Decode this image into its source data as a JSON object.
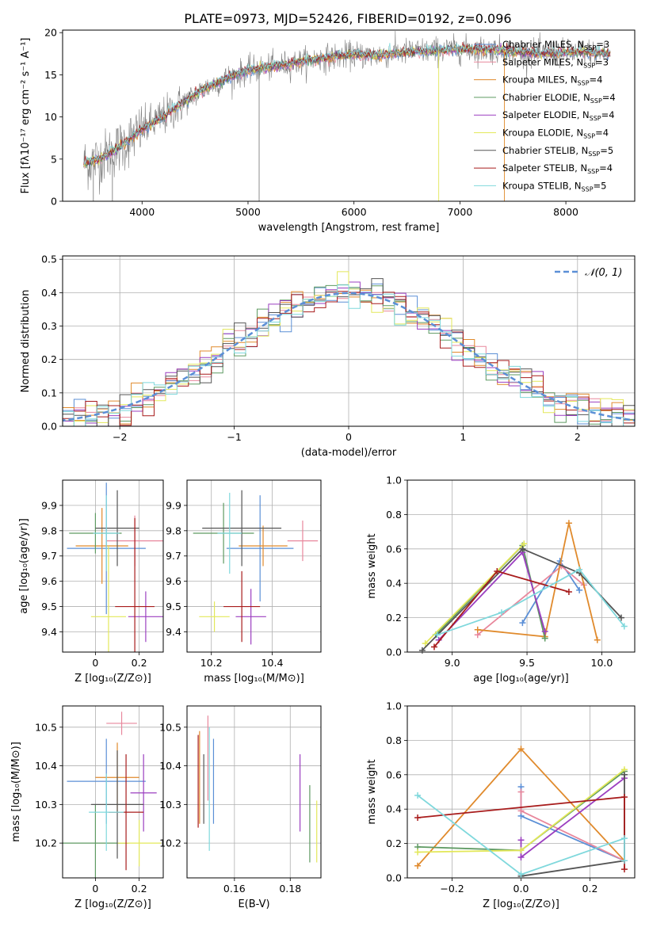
{
  "figure": {
    "title": "PLATE=0973, MJD=52426, FIBERID=0192, z=0.096"
  },
  "series_styles": [
    {
      "name": "Chabrier MILES, N",
      "sub": "SSP",
      "tail": "=3",
      "color": "#5b8fd6"
    },
    {
      "name": "Salpeter MILES, N",
      "sub": "SSP",
      "tail": "=3",
      "color": "#e8879c"
    },
    {
      "name": "Kroupa MILES, N",
      "sub": "SSP",
      "tail": "=4",
      "color": "#e08a2c"
    },
    {
      "name": "Chabrier ELODIE, N",
      "sub": "SSP",
      "tail": "=4",
      "color": "#5e9a62"
    },
    {
      "name": "Salpeter ELODIE, N",
      "sub": "SSP",
      "tail": "=4",
      "color": "#9b3fc0"
    },
    {
      "name": "Kroupa ELODIE, N",
      "sub": "SSP",
      "tail": "=4",
      "color": "#e3e85a"
    },
    {
      "name": "Chabrier STELIB, N",
      "sub": "SSP",
      "tail": "=5",
      "color": "#555555"
    },
    {
      "name": "Salpeter STELIB, N",
      "sub": "SSP",
      "tail": "=4",
      "color": "#a81c1c"
    },
    {
      "name": "Kroupa STELIB, N",
      "sub": "SSP",
      "tail": "=5",
      "color": "#7fd8dc"
    }
  ],
  "chart_data": [
    {
      "type": "line",
      "id": "spectrum",
      "title": "PLATE=0973, MJD=52426, FIBERID=0192, z=0.096",
      "xlabel": "wavelength [Angstrom, rest frame]",
      "ylabel": "Flux [fλ10⁻¹⁷ erg cm⁻² s⁻¹ A⁻¹]",
      "xlim": [
        3250,
        8650
      ],
      "ylim": [
        0,
        20.3
      ],
      "xticks": [
        4000,
        5000,
        6000,
        7000,
        8000
      ],
      "yticks": [
        0,
        5,
        10,
        15,
        20
      ],
      "continuum": {
        "x": [
          3450,
          3600,
          3800,
          4000,
          4200,
          4400,
          4600,
          4800,
          5000,
          5200,
          5400,
          5600,
          5800,
          6000,
          6200,
          6400,
          6600,
          6800,
          7000,
          7200,
          7400,
          7600,
          7800,
          8000,
          8200,
          8400
        ],
        "y": [
          4.5,
          5.0,
          6.5,
          8.5,
          10.0,
          11.8,
          13.4,
          14.6,
          15.5,
          15.9,
          16.3,
          16.8,
          17.1,
          17.4,
          17.3,
          17.6,
          17.8,
          17.9,
          18.0,
          18.0,
          17.9,
          17.6,
          17.5,
          17.6,
          17.7,
          17.5
        ]
      },
      "legend": "upper right"
    },
    {
      "type": "line",
      "id": "residuals",
      "xlabel": "(data-model)/error",
      "ylabel": "Normed distribution",
      "xlim": [
        -2.5,
        2.5
      ],
      "ylim": [
        0,
        0.51
      ],
      "xticks": [
        -2,
        -1,
        0,
        1,
        2
      ],
      "yticks": [
        0,
        0.1,
        0.2,
        0.3,
        0.4,
        0.5
      ],
      "xtick_labels": [
        "−2",
        "−1",
        "0",
        "1",
        "2"
      ],
      "yticklabels": [
        "0.0",
        "0.1",
        "0.2",
        "0.3",
        "0.4",
        "0.5"
      ],
      "gaussian_label": "𝒩(0, 1)",
      "grid": true,
      "legend": "upper right"
    },
    {
      "type": "scatter",
      "id": "age_vs_Z",
      "xlabel": "Z [log₁₀(Z/Z⊙)]",
      "ylabel": "age  [log₁₀(age/yr)]",
      "xlim": [
        -0.15,
        0.31
      ],
      "ylim": [
        9.32,
        10.0
      ],
      "xticks": [
        0.0,
        0.2
      ],
      "yticks": [
        9.4,
        9.5,
        9.6,
        9.7,
        9.8,
        9.9
      ],
      "points": [
        {
          "x": 0.05,
          "y": 9.73,
          "xerr": 0.18,
          "yerr": 0.26
        },
        {
          "x": 0.18,
          "y": 9.76,
          "xerr": 0.13,
          "yerr": 0.1
        },
        {
          "x": 0.03,
          "y": 9.74,
          "xerr": 0.12,
          "yerr": 0.15
        },
        {
          "x": 0.0,
          "y": 9.79,
          "xerr": 0.12,
          "yerr": 0.08
        },
        {
          "x": 0.23,
          "y": 9.46,
          "xerr": 0.08,
          "yerr": 0.1
        },
        {
          "x": 0.06,
          "y": 9.46,
          "xerr": 0.08,
          "yerr": 0.28
        },
        {
          "x": 0.1,
          "y": 9.81,
          "xerr": 0.1,
          "yerr": 0.15
        },
        {
          "x": 0.18,
          "y": 9.5,
          "xerr": 0.09,
          "yerr": 0.35
        },
        {
          "x": 0.05,
          "y": 9.79,
          "xerr": 0.06,
          "yerr": 0.15
        }
      ]
    },
    {
      "type": "scatter",
      "id": "age_vs_mass",
      "xlabel": "mass [log₁₀(M/M⊙)]",
      "xlim": [
        10.12,
        10.56
      ],
      "ylim": [
        9.32,
        10.0
      ],
      "xticks": [
        10.2,
        10.4
      ],
      "yticks": [
        9.4,
        9.5,
        9.6,
        9.7,
        9.8,
        9.9
      ],
      "points": [
        {
          "x": 10.36,
          "y": 9.73,
          "xerr": 0.11,
          "yerr": 0.21
        },
        {
          "x": 10.5,
          "y": 9.76,
          "xerr": 0.05,
          "yerr": 0.08
        },
        {
          "x": 10.37,
          "y": 9.74,
          "xerr": 0.08,
          "yerr": 0.08
        },
        {
          "x": 10.24,
          "y": 9.79,
          "xerr": 0.1,
          "yerr": 0.12
        },
        {
          "x": 10.33,
          "y": 9.46,
          "xerr": 0.05,
          "yerr": 0.11
        },
        {
          "x": 10.21,
          "y": 9.46,
          "xerr": 0.05,
          "yerr": 0.06
        },
        {
          "x": 10.3,
          "y": 9.81,
          "xerr": 0.13,
          "yerr": 0.15
        },
        {
          "x": 10.3,
          "y": 9.5,
          "xerr": 0.06,
          "yerr": 0.14
        },
        {
          "x": 10.26,
          "y": 9.79,
          "xerr": 0.04,
          "yerr": 0.16
        }
      ]
    },
    {
      "type": "line",
      "id": "weight_vs_age",
      "xlabel": "age  [log₁₀(age/yr)]",
      "ylabel": "mass weight",
      "xlim": [
        8.7,
        10.22
      ],
      "ylim": [
        0,
        1.0
      ],
      "xticks": [
        9.0,
        9.5,
        10.0
      ],
      "yticks": [
        0,
        0.2,
        0.4,
        0.6,
        0.8,
        1.0
      ],
      "xticklabels": [
        "9.0",
        "9.5",
        "10.0"
      ],
      "yticklabels": [
        "0.0",
        "0.2",
        "0.4",
        "0.6",
        "0.8",
        "1.0"
      ],
      "series": [
        {
          "x": [
            9.47,
            9.72,
            9.85
          ],
          "y": [
            0.17,
            0.53,
            0.36
          ]
        },
        {
          "x": [
            9.17,
            9.73,
            9.88
          ],
          "y": [
            0.1,
            0.5,
            0.39
          ]
        },
        {
          "x": [
            9.17,
            9.62,
            9.78,
            9.97
          ],
          "y": [
            0.13,
            0.09,
            0.75,
            0.07
          ]
        },
        {
          "x": [
            8.89,
            9.47,
            9.62
          ],
          "y": [
            0.1,
            0.62,
            0.08
          ]
        },
        {
          "x": [
            8.91,
            9.47,
            9.62
          ],
          "y": [
            0.07,
            0.58,
            0.12
          ]
        },
        {
          "x": [
            8.82,
            9.48
          ],
          "y": [
            0.05,
            0.63
          ]
        },
        {
          "x": [
            8.8,
            9.47,
            9.85,
            10.13
          ],
          "y": [
            0.01,
            0.6,
            0.46,
            0.2
          ]
        },
        {
          "x": [
            8.88,
            9.3,
            9.78
          ],
          "y": [
            0.03,
            0.47,
            0.35
          ]
        },
        {
          "x": [
            8.9,
            9.33,
            9.85,
            10.15
          ],
          "y": [
            0.1,
            0.23,
            0.48,
            0.15
          ]
        }
      ]
    },
    {
      "type": "scatter",
      "id": "mass_vs_Z",
      "xlabel": "Z [log₁₀(Z/Z⊙)]",
      "ylabel": "mass [log₁₀(M/M⊙)]",
      "xlim": [
        -0.15,
        0.31
      ],
      "ylim": [
        10.11,
        10.555
      ],
      "xticks": [
        0.0,
        0.2
      ],
      "yticks": [
        10.2,
        10.3,
        10.4,
        10.5
      ],
      "points": [
        {
          "x": 0.05,
          "y": 10.36,
          "xerr": 0.18,
          "yerr": 0.11
        },
        {
          "x": 0.12,
          "y": 10.51,
          "xerr": 0.07,
          "yerr": 0.03
        },
        {
          "x": 0.1,
          "y": 10.37,
          "xerr": 0.1,
          "yerr": 0.09
        },
        {
          "x": 0.0,
          "y": 10.2,
          "xerr": 0.15,
          "yerr": 0.1
        },
        {
          "x": 0.22,
          "y": 10.33,
          "xerr": 0.06,
          "yerr": 0.1
        },
        {
          "x": 0.2,
          "y": 10.2,
          "xerr": 0.1,
          "yerr": 0.06
        },
        {
          "x": 0.1,
          "y": 10.3,
          "xerr": 0.12,
          "yerr": 0.14
        },
        {
          "x": 0.14,
          "y": 10.28,
          "xerr": 0.08,
          "yerr": 0.15
        },
        {
          "x": 0.05,
          "y": 10.28,
          "xerr": 0.08,
          "yerr": 0.1
        }
      ]
    },
    {
      "type": "scatter",
      "id": "mass_vs_ebv",
      "xlabel": "E(B-V)",
      "xlim": [
        0.143,
        0.191
      ],
      "ylim": [
        10.11,
        10.555
      ],
      "xticks": [
        0.16,
        0.18
      ],
      "yticks": [
        10.2,
        10.3,
        10.4,
        10.5
      ],
      "points": [
        {
          "x": 0.1525,
          "y": 10.36,
          "yerr": 0.11
        },
        {
          "x": 0.1505,
          "y": 10.42,
          "yerr": 0.11
        },
        {
          "x": 0.1475,
          "y": 10.37,
          "yerr": 0.12
        },
        {
          "x": 0.187,
          "y": 10.25,
          "yerr": 0.1
        },
        {
          "x": 0.1835,
          "y": 10.33,
          "yerr": 0.1
        },
        {
          "x": 0.1895,
          "y": 10.23,
          "yerr": 0.08
        },
        {
          "x": 0.149,
          "y": 10.34,
          "yerr": 0.09
        },
        {
          "x": 0.147,
          "y": 10.36,
          "yerr": 0.12
        },
        {
          "x": 0.151,
          "y": 10.34,
          "yerr": 0.16
        }
      ]
    },
    {
      "type": "line",
      "id": "weight_vs_Z",
      "xlabel": "Z [log₁₀(Z/Z⊙)]",
      "ylabel": "mass weight",
      "xlim": [
        -0.33,
        0.33
      ],
      "ylim": [
        0,
        1.0
      ],
      "xticks": [
        -0.2,
        0.0,
        0.2
      ],
      "yticks": [
        0,
        0.2,
        0.4,
        0.6,
        0.8,
        1.0
      ],
      "xticklabels": [
        "−0.2",
        "0.0",
        "0.2"
      ],
      "yticklabels": [
        "0.0",
        "0.2",
        "0.4",
        "0.6",
        "0.8",
        "1.0"
      ],
      "series": [
        {
          "x": [
            0.0,
            0.0,
            0.3
          ],
          "y": [
            0.53,
            0.36,
            0.1
          ]
        },
        {
          "x": [
            0.0,
            0.0,
            0.3
          ],
          "y": [
            0.5,
            0.39,
            0.1
          ]
        },
        {
          "x": [
            -0.3,
            0.0,
            0.3
          ],
          "y": [
            0.07,
            0.75,
            0.1
          ]
        },
        {
          "x": [
            -0.3,
            0.0,
            0.3
          ],
          "y": [
            0.18,
            0.16,
            0.62
          ]
        },
        {
          "x": [
            0.0,
            0.0,
            0.3
          ],
          "y": [
            0.22,
            0.12,
            0.58
          ]
        },
        {
          "x": [
            -0.3,
            0.0,
            0.3
          ],
          "y": [
            0.15,
            0.16,
            0.63
          ]
        },
        {
          "x": [
            0.0,
            0.3,
            0.3
          ],
          "y": [
            0.01,
            0.1,
            0.6
          ]
        },
        {
          "x": [
            -0.3,
            0.3,
            0.3
          ],
          "y": [
            0.35,
            0.47,
            0.05
          ]
        },
        {
          "x": [
            -0.3,
            0.0,
            0.3,
            0.3
          ],
          "y": [
            0.48,
            0.02,
            0.23,
            0.1
          ]
        }
      ]
    }
  ]
}
